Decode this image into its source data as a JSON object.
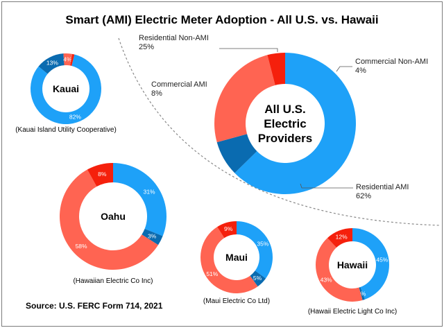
{
  "title": "Smart (AMI) Electric Meter Adoption - All U.S. vs. Hawaii",
  "source": "Source: U.S. FERC Form 714, 2021",
  "colors": {
    "residential_ami": "#1EA1F8",
    "commercial_ami": "#0A6BB0",
    "residential_non_ami": "#FF6452",
    "commercial_non_ami": "#F5200C",
    "divider": "#888888"
  },
  "chart_data": [
    {
      "type": "pie",
      "center_label": [
        "All U.S.",
        "Electric",
        "Providers"
      ],
      "caption": "",
      "slices": [
        {
          "name": "Residential AMI",
          "value": 62,
          "label": "62%",
          "color_key": "residential_ami"
        },
        {
          "name": "Commercial AMI",
          "value": 8,
          "label": "8%",
          "color_key": "commercial_ami"
        },
        {
          "name": "Residential Non-AMI",
          "value": 25,
          "label": "25%",
          "color_key": "residential_non_ami"
        },
        {
          "name": "Commercial Non-AMI",
          "value": 4,
          "label": "4%",
          "color_key": "commercial_non_ami"
        }
      ]
    },
    {
      "type": "pie",
      "center_label": [
        "Kauai"
      ],
      "caption": "(Kauai Island Utility Cooperative)",
      "slices": [
        {
          "name": "Residential AMI",
          "value": 82,
          "label": "82%",
          "color_key": "residential_ami"
        },
        {
          "name": "Commercial AMI",
          "value": 13,
          "label": "13%",
          "color_key": "commercial_ami"
        },
        {
          "name": "Residential Non-AMI",
          "value": 4,
          "label": "4%",
          "color_key": "residential_non_ami"
        },
        {
          "name": "Commercial Non-AMI",
          "value": 1,
          "label": "",
          "color_key": "commercial_non_ami"
        }
      ]
    },
    {
      "type": "pie",
      "center_label": [
        "Oahu"
      ],
      "caption": "(Hawaiian Electric Co Inc)",
      "slices": [
        {
          "name": "Residential AMI",
          "value": 31,
          "label": "31%",
          "color_key": "residential_ami"
        },
        {
          "name": "Commercial AMI",
          "value": 3,
          "label": "3%",
          "color_key": "commercial_ami"
        },
        {
          "name": "Residential Non-AMI",
          "value": 58,
          "label": "58%",
          "color_key": "residential_non_ami"
        },
        {
          "name": "Commercial Non-AMI",
          "value": 8,
          "label": "8%",
          "color_key": "commercial_non_ami"
        }
      ]
    },
    {
      "type": "pie",
      "center_label": [
        "Maui"
      ],
      "caption": "(Maui Electric Co Ltd)",
      "slices": [
        {
          "name": "Residential AMI",
          "value": 35,
          "label": "35%",
          "color_key": "residential_ami"
        },
        {
          "name": "Commercial AMI",
          "value": 5,
          "label": "5%",
          "color_key": "commercial_ami"
        },
        {
          "name": "Residential Non-AMI",
          "value": 51,
          "label": "51%",
          "color_key": "residential_non_ami"
        },
        {
          "name": "Commercial Non-AMI",
          "value": 9,
          "label": "9%",
          "color_key": "commercial_non_ami"
        }
      ]
    },
    {
      "type": "pie",
      "center_label": [
        "Hawaii"
      ],
      "caption": "(Hawaii Electric Light Co Inc)",
      "slices": [
        {
          "name": "Residential AMI",
          "value": 45,
          "label": "45%",
          "color_key": "residential_ami"
        },
        {
          "name": "Commercial AMI",
          "value": 1,
          "label": "1%",
          "color_key": "commercial_ami"
        },
        {
          "name": "Residential Non-AMI",
          "value": 43,
          "label": "43%",
          "color_key": "residential_non_ami"
        },
        {
          "name": "Commercial Non-AMI",
          "value": 12,
          "label": "12%",
          "color_key": "commercial_non_ami"
        }
      ]
    }
  ]
}
